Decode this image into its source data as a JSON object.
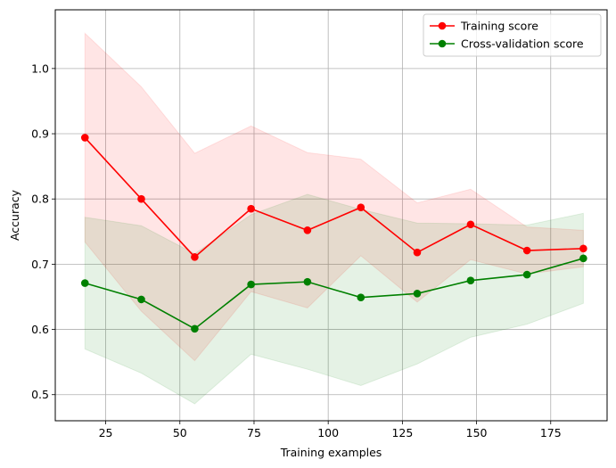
{
  "chart_data": {
    "type": "line",
    "xlabel": "Training examples",
    "ylabel": "Accuracy",
    "xlim": [
      8,
      194
    ],
    "ylim": [
      0.46,
      1.09
    ],
    "xticks": [
      25,
      50,
      75,
      100,
      125,
      150,
      175
    ],
    "yticks": [
      0.5,
      0.6,
      0.7,
      0.8,
      0.9,
      1.0
    ],
    "ytick_labels": [
      "0.5",
      "0.6",
      "0.7",
      "0.8",
      "0.9",
      "1.0"
    ],
    "grid": true,
    "legend_position": "top-right",
    "x": [
      18,
      37,
      55,
      74,
      93,
      111,
      130,
      148,
      167,
      186
    ],
    "series": [
      {
        "name": "Training score",
        "color": "#ff0000",
        "band_color": "#ff0000",
        "values": [
          0.894,
          0.8,
          0.711,
          0.785,
          0.752,
          0.787,
          0.718,
          0.761,
          0.721,
          0.724
        ],
        "band_upper": [
          1.054,
          0.972,
          0.87,
          0.912,
          0.871,
          0.861,
          0.794,
          0.815,
          0.757,
          0.752
        ],
        "band_lower": [
          0.734,
          0.628,
          0.552,
          0.658,
          0.633,
          0.713,
          0.642,
          0.707,
          0.685,
          0.696
        ]
      },
      {
        "name": "Cross-validation score",
        "color": "#008000",
        "band_color": "#008000",
        "values": [
          0.671,
          0.646,
          0.601,
          0.669,
          0.673,
          0.649,
          0.655,
          0.675,
          0.684,
          0.709
        ],
        "band_upper": [
          0.772,
          0.759,
          0.716,
          0.776,
          0.807,
          0.784,
          0.763,
          0.762,
          0.76,
          0.778
        ],
        "band_lower": [
          0.57,
          0.533,
          0.486,
          0.562,
          0.539,
          0.514,
          0.547,
          0.588,
          0.608,
          0.64
        ]
      }
    ]
  }
}
